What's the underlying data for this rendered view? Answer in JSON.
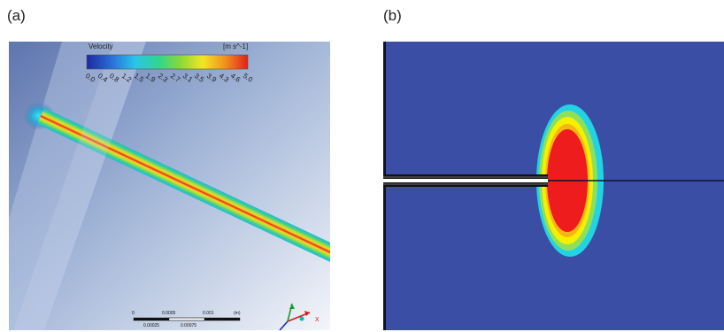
{
  "panel_a": {
    "label": "(a)",
    "colorbar": {
      "title": "Velocity",
      "unit": "[m s^-1]",
      "ticks": [
        "0.0",
        "0.4",
        "0.8",
        "1.2",
        "1.5",
        "1.9",
        "2.3",
        "2.7",
        "3.1",
        "3.5",
        "3.9",
        "4.3",
        "4.6",
        "5.0"
      ]
    },
    "scale_bar": {
      "top_labels": [
        "0",
        "0.0005",
        "0.001",
        "(m)"
      ],
      "bottom_labels": [
        "0.00025",
        "0.00075"
      ]
    },
    "axes_triad": {
      "x_label": "X",
      "icon": "xyz-axes-icon"
    }
  },
  "panel_b": {
    "label": "(b)"
  },
  "colors": {
    "background_field": "#3b4ea5",
    "high": "#ee1c1c",
    "mid": "#f5f000",
    "low": "#22d3e4"
  }
}
